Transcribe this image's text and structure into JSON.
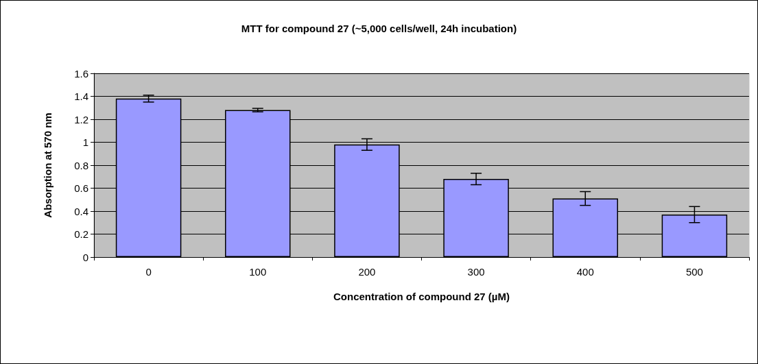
{
  "chart_data": {
    "type": "bar",
    "title": "MTT for compound 27 (~5,000 cells/well, 24h incubation)",
    "xlabel": "Concentration of compound 27 (µM)",
    "ylabel": "Absorption at 570 nm",
    "categories": [
      "0",
      "100",
      "200",
      "300",
      "400",
      "500"
    ],
    "values": [
      1.38,
      1.28,
      0.98,
      0.68,
      0.51,
      0.37
    ],
    "errors": [
      0.03,
      0.015,
      0.05,
      0.05,
      0.06,
      0.07
    ],
    "color": "#9999ff",
    "ylim": [
      0,
      1.6
    ],
    "yticks": [
      0,
      0.2,
      0.4,
      0.6,
      0.8,
      1,
      1.2,
      1.4,
      1.6
    ],
    "grid": "y"
  }
}
